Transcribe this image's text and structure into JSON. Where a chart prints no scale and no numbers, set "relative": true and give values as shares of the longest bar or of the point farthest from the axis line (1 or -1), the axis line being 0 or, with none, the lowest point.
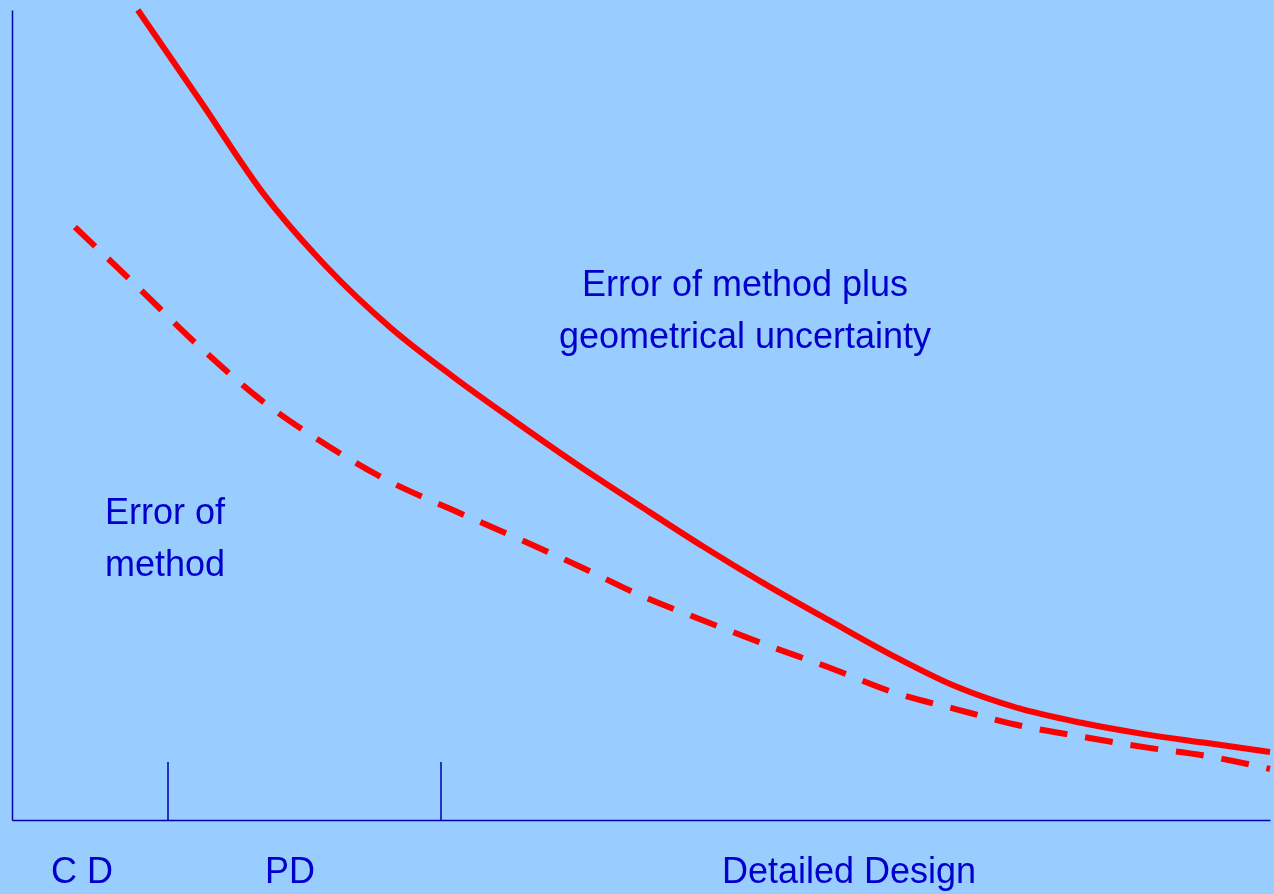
{
  "chart_data": {
    "type": "line",
    "relative": true,
    "categories": [
      null,
      null,
      null,
      null,
      null,
      null,
      null,
      null,
      null,
      null,
      null,
      null,
      null,
      null,
      null,
      null,
      null,
      null,
      null,
      null,
      null
    ],
    "series": [
      {
        "name": "Error of method plus geometrical uncertainty",
        "color": "#ff0000",
        "line_style": "solid",
        "values": [
          null,
          null,
          1.0,
          0.887,
          0.773,
          0.683,
          0.609,
          0.548,
          0.492,
          0.438,
          0.387,
          0.337,
          0.29,
          0.246,
          0.203,
          0.165,
          0.138,
          0.12,
          0.106,
          0.095,
          0.084
        ]
      },
      {
        "name": "Error of method",
        "color": "#ff0000",
        "line_style": "dashed",
        "values": [
          null,
          0.732,
          0.658,
          0.583,
          0.516,
          0.463,
          0.418,
          0.383,
          0.349,
          0.314,
          0.277,
          0.246,
          0.216,
          0.188,
          0.158,
          0.137,
          0.117,
          0.103,
          0.09,
          0.079,
          0.063
        ]
      }
    ],
    "annotations": [
      "C D",
      "PD",
      "Detailed Design"
    ],
    "grid": false
  }
}
